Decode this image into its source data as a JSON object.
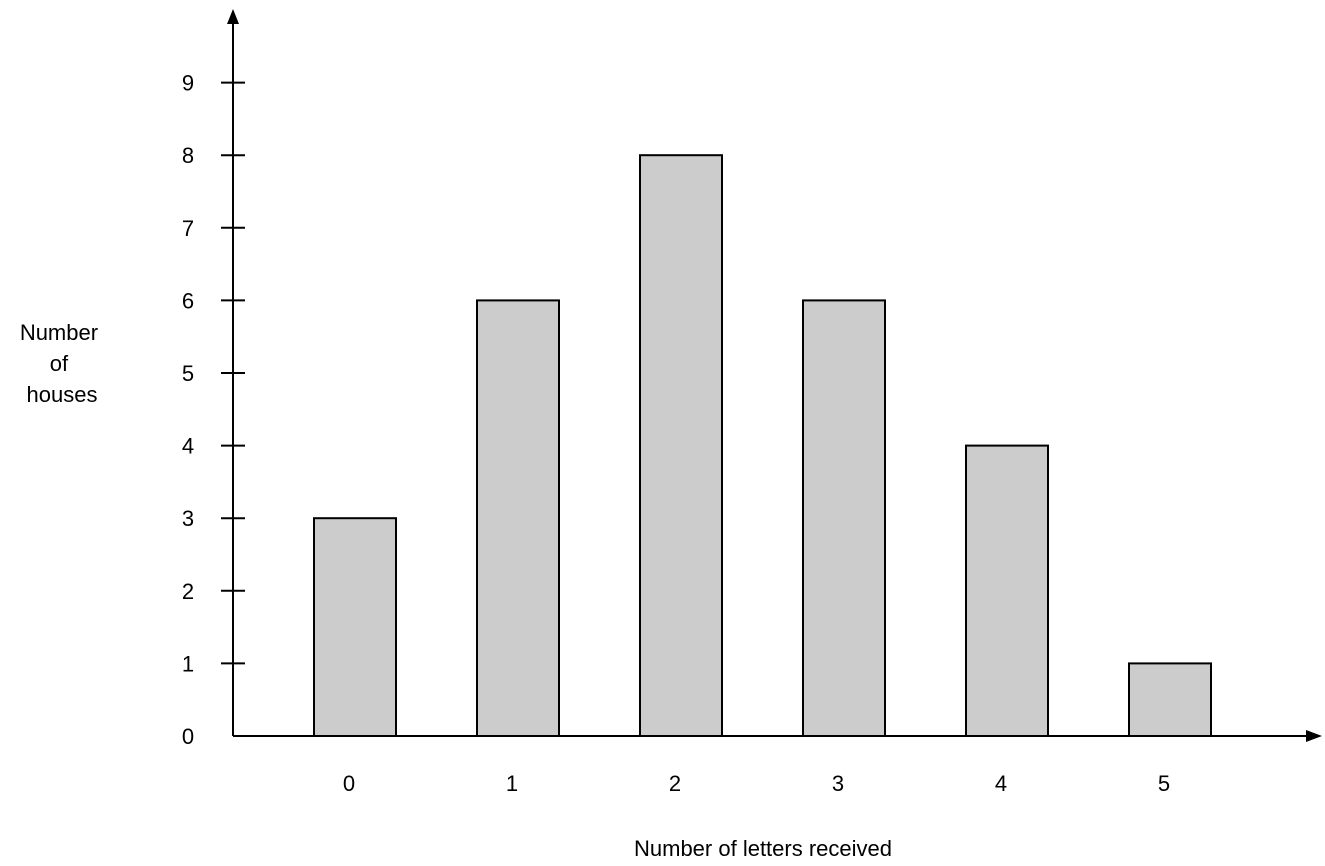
{
  "chart_data": {
    "type": "bar",
    "categories": [
      "0",
      "1",
      "2",
      "3",
      "4",
      "5"
    ],
    "values": [
      3,
      6,
      8,
      6,
      4,
      1
    ],
    "xlabel": "Number of letters received",
    "ylabel_lines": [
      "Number",
      "of",
      "houses"
    ],
    "yticks": [
      "0",
      "1",
      "2",
      "3",
      "4",
      "5",
      "6",
      "7",
      "8",
      "9"
    ],
    "ylim": [
      0,
      9
    ],
    "grid": false,
    "legend": "none",
    "colors": {
      "bar_fill": "#cccccc",
      "bar_stroke": "#000000",
      "axis": "#000000"
    }
  }
}
